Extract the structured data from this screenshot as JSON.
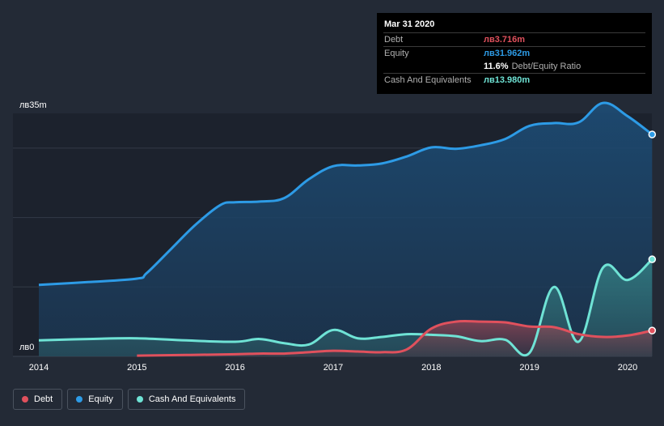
{
  "tooltip": {
    "date": "Mar 31 2020",
    "rows": [
      {
        "label": "Debt",
        "value": "лв3.716m",
        "color": "#e0515d"
      },
      {
        "label": "Equity",
        "value": "лв31.962m",
        "color": "#2d9be6"
      },
      {
        "label": "",
        "value": "11.6%",
        "suffix": "Debt/Equity Ratio",
        "color": "#ffffff"
      },
      {
        "label": "Cash And Equivalents",
        "value": "лв13.980m",
        "color": "#6fe3d5"
      }
    ]
  },
  "legend": [
    {
      "label": "Debt",
      "color": "#e0515d"
    },
    {
      "label": "Equity",
      "color": "#2d9be6"
    },
    {
      "label": "Cash And Equivalents",
      "color": "#6fe3d5"
    }
  ],
  "chart_data": {
    "type": "area",
    "title": "",
    "xlabel": "",
    "ylabel": "",
    "y_top_label": "лв35m",
    "y_bottom_label": "лв0",
    "ylim": [
      0,
      35
    ],
    "xlim": [
      2013.75,
      2020.25
    ],
    "x_tick_labels": [
      "2014",
      "2015",
      "2016",
      "2017",
      "2018",
      "2019",
      "2020"
    ],
    "x_ticks": [
      2014,
      2015,
      2016,
      2017,
      2018,
      2019,
      2020
    ],
    "grid": true,
    "legend_position": "bottom-left",
    "series": [
      {
        "name": "Equity",
        "color": "#2d9be6",
        "x": [
          2014.0,
          2014.5,
          2015.0,
          2015.1,
          2015.35,
          2015.6,
          2015.85,
          2016.0,
          2016.25,
          2016.5,
          2016.75,
          2017.0,
          2017.25,
          2017.5,
          2017.75,
          2018.0,
          2018.25,
          2018.5,
          2018.75,
          2019.0,
          2019.25,
          2019.5,
          2019.75,
          2020.0,
          2020.25
        ],
        "values": [
          10.3,
          10.7,
          11.2,
          12.0,
          15.5,
          19.0,
          21.8,
          22.2,
          22.3,
          22.8,
          25.5,
          27.4,
          27.5,
          27.8,
          28.8,
          30.1,
          29.9,
          30.4,
          31.3,
          33.2,
          33.6,
          33.7,
          36.5,
          34.6,
          31.962
        ]
      },
      {
        "name": "Cash And Equivalents",
        "color": "#6fe3d5",
        "x": [
          2014.0,
          2014.5,
          2015.0,
          2015.5,
          2016.0,
          2016.25,
          2016.5,
          2016.75,
          2017.0,
          2017.25,
          2017.5,
          2017.75,
          2018.0,
          2018.25,
          2018.5,
          2018.75,
          2019.0,
          2019.25,
          2019.5,
          2019.75,
          2020.0,
          2020.25
        ],
        "values": [
          2.3,
          2.5,
          2.6,
          2.3,
          2.1,
          2.5,
          1.9,
          1.7,
          3.8,
          2.6,
          2.8,
          3.2,
          3.1,
          2.9,
          2.2,
          2.4,
          0.5,
          10.0,
          2.1,
          12.8,
          11.0,
          13.98
        ]
      },
      {
        "name": "Debt",
        "color": "#e0515d",
        "x": [
          2015.0,
          2015.5,
          2016.0,
          2016.25,
          2016.5,
          2016.75,
          2017.0,
          2017.25,
          2017.5,
          2017.75,
          2018.0,
          2018.25,
          2018.5,
          2018.75,
          2019.0,
          2019.25,
          2019.5,
          2019.75,
          2020.0,
          2020.25
        ],
        "values": [
          0.1,
          0.2,
          0.3,
          0.4,
          0.4,
          0.6,
          0.8,
          0.7,
          0.6,
          1.0,
          4.0,
          5.0,
          5.0,
          4.9,
          4.3,
          4.2,
          3.2,
          2.8,
          3.0,
          3.716
        ]
      }
    ]
  }
}
